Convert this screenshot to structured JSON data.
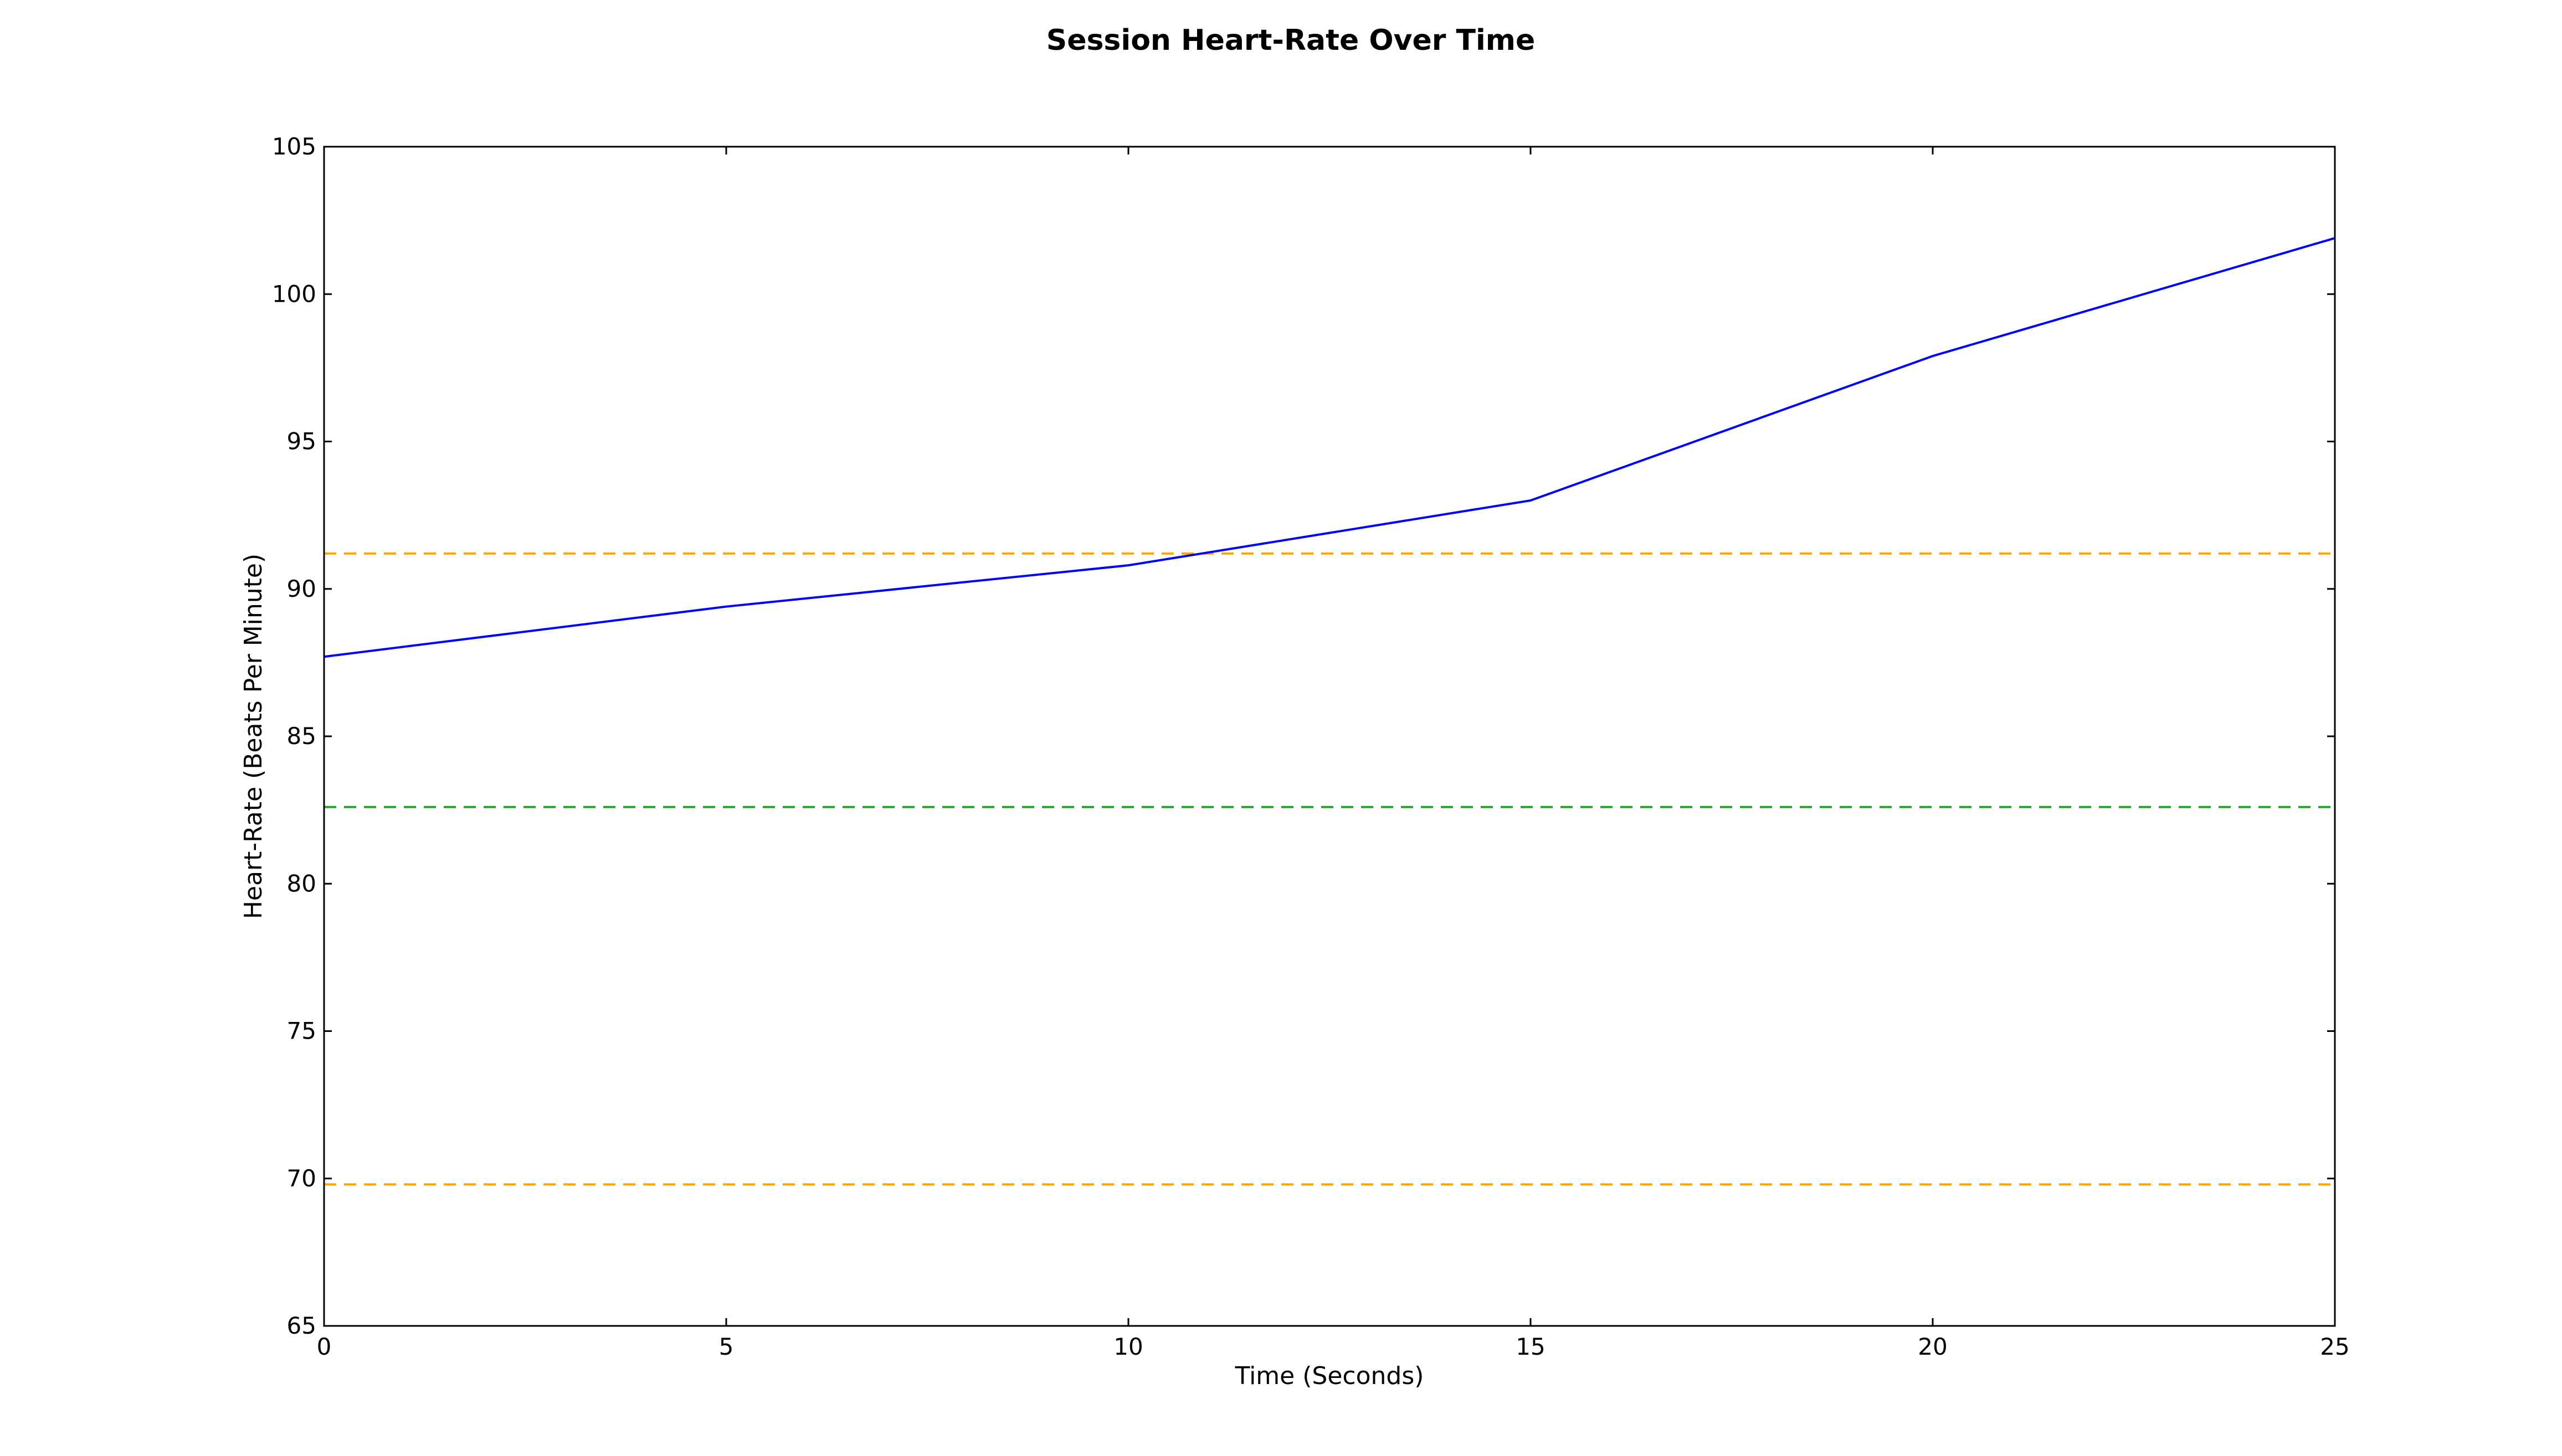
{
  "chart_data": {
    "type": "line",
    "title": "Session Heart-Rate Over Time",
    "xlabel": "Time (Seconds)",
    "ylabel": "Heart-Rate (Beats Per Minute)",
    "xlim": [
      0,
      25
    ],
    "ylim": [
      65,
      105
    ],
    "xticks": [
      0,
      5,
      10,
      15,
      20,
      25
    ],
    "yticks": [
      65,
      70,
      75,
      80,
      85,
      90,
      95,
      100,
      105
    ],
    "grid": false,
    "legend": "none",
    "series": [
      {
        "color": "#0000ff",
        "style": "solid",
        "x": [
          0,
          5,
          10,
          15,
          20,
          25
        ],
        "values": [
          87.7,
          89.4,
          90.8,
          93.0,
          97.9,
          101.9
        ]
      }
    ],
    "reference_lines": [
      {
        "y": 91.2,
        "color": "#ffa500",
        "style": "dashed"
      },
      {
        "y": 82.6,
        "color": "#2ca02c",
        "style": "dashed"
      },
      {
        "y": 69.8,
        "color": "#ffa500",
        "style": "dashed"
      }
    ]
  }
}
